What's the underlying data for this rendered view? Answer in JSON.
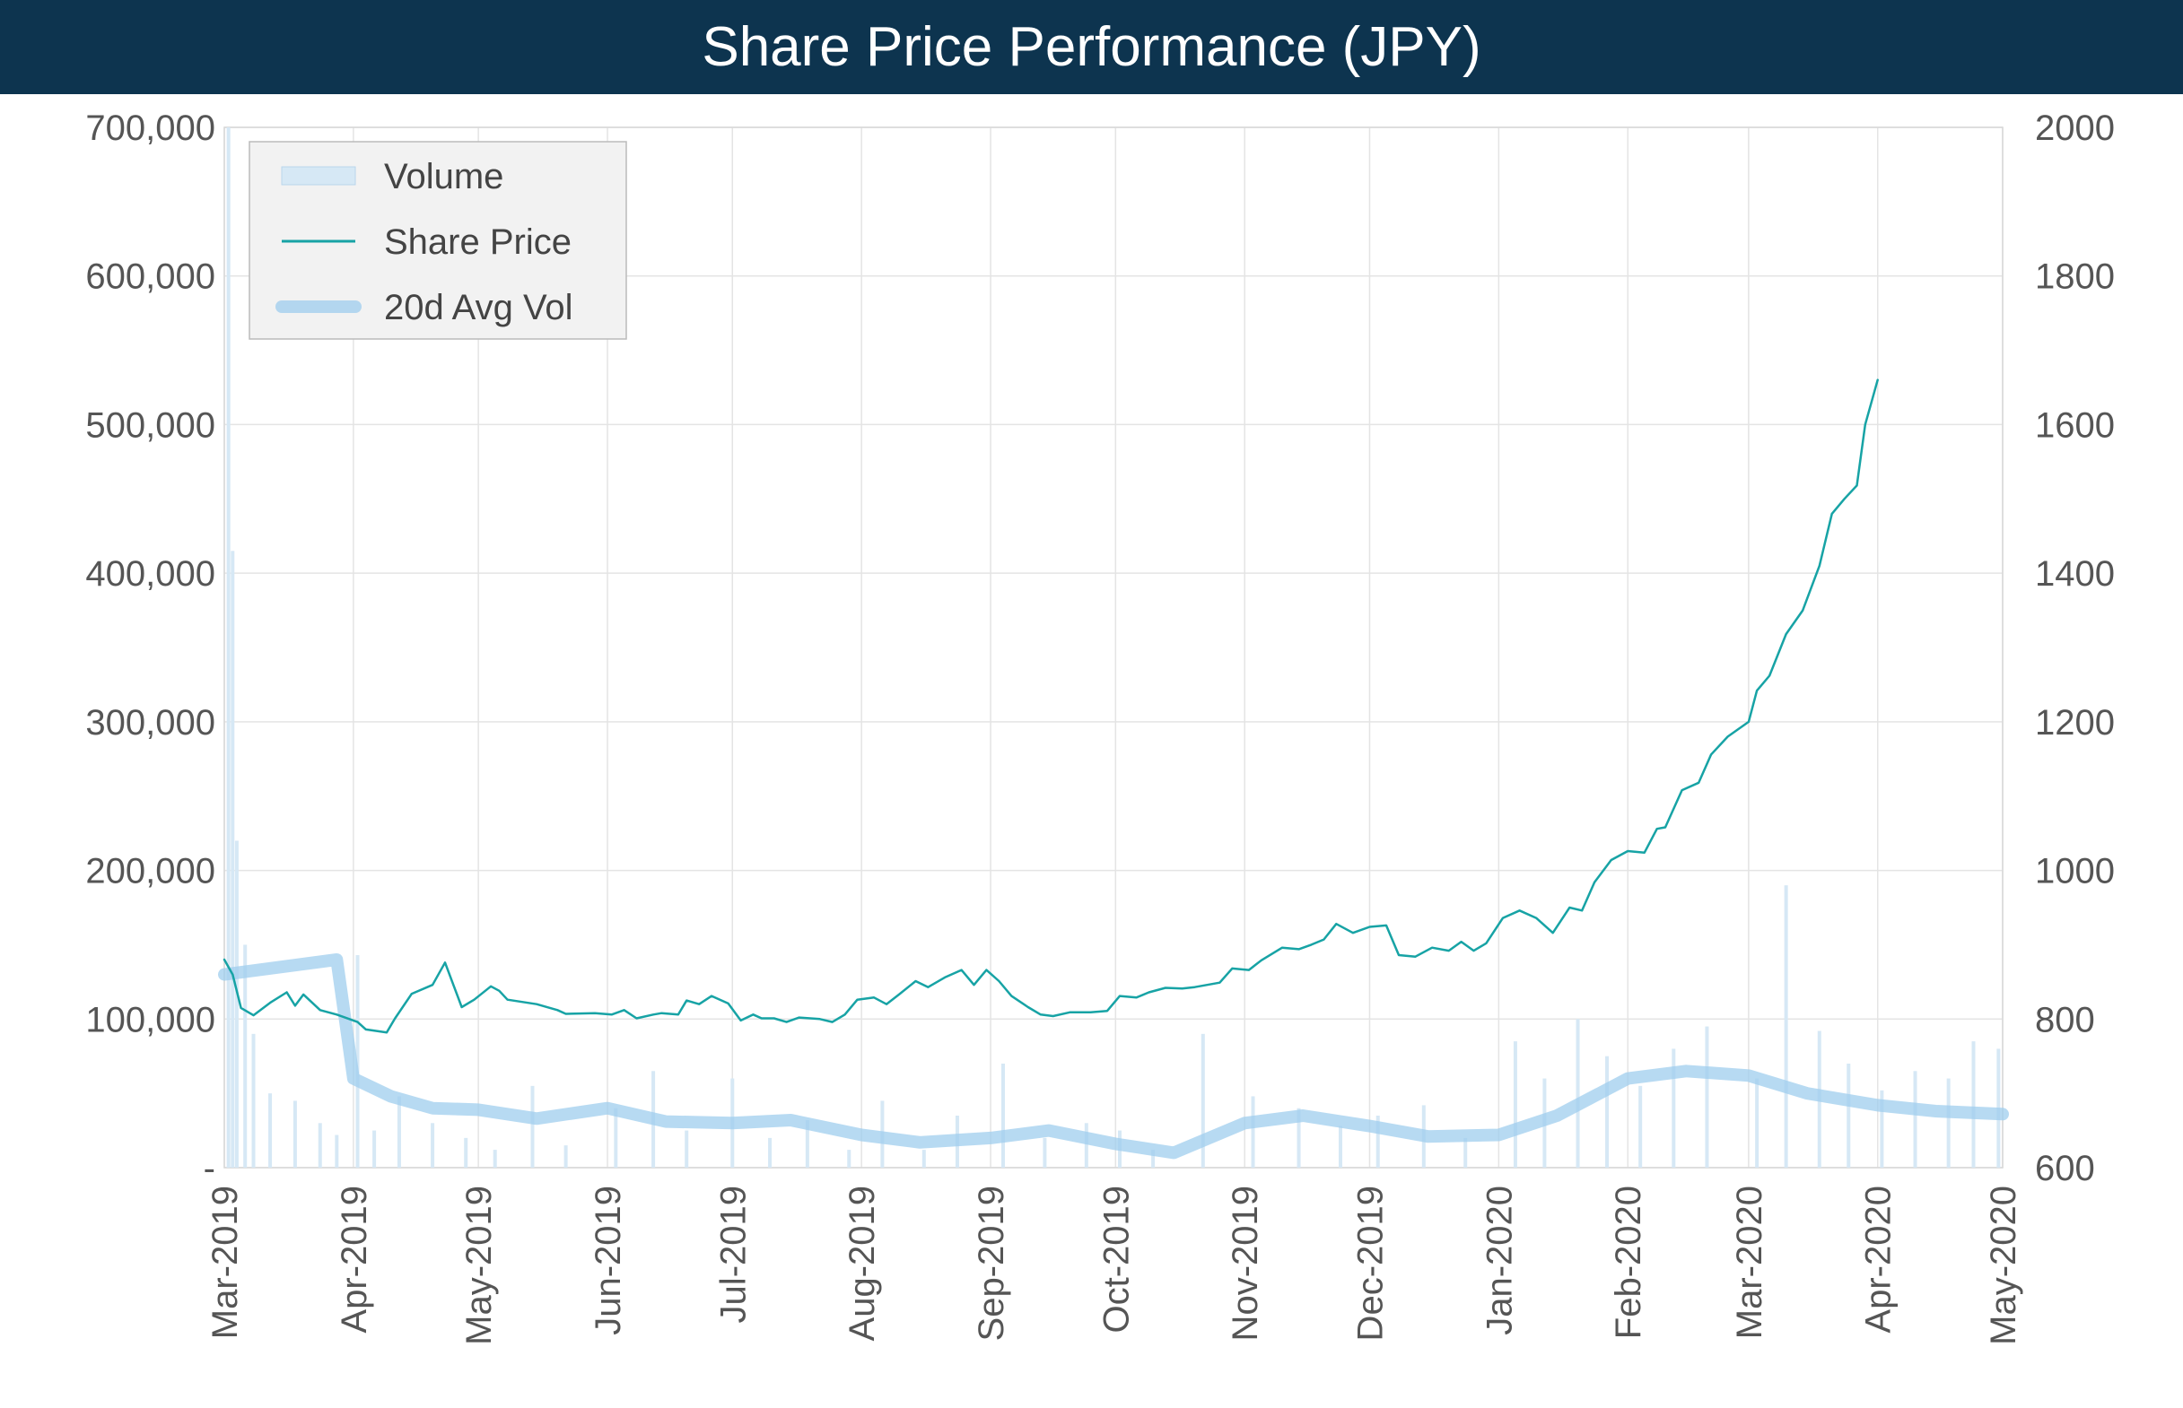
{
  "chart_data": {
    "type": "line",
    "title": "Share Price Performance (JPY)",
    "legend": {
      "placement": "top-left",
      "entries": [
        {
          "name": "Volume",
          "color": "#d6e8f5"
        },
        {
          "name": "Share Price",
          "color": "#17a3a5"
        },
        {
          "name": "20d Avg Vol",
          "color": "#9fcdee"
        }
      ]
    },
    "y_left": {
      "label": "",
      "range": [
        0,
        700000
      ],
      "ticks": [
        "-",
        "100,000",
        "200,000",
        "300,000",
        "400,000",
        "500,000",
        "600,000",
        "700,000"
      ],
      "tick_values": [
        0,
        100000,
        200000,
        300000,
        400000,
        500000,
        600000,
        700000
      ]
    },
    "y_right": {
      "label": "",
      "range": [
        600,
        2000
      ],
      "ticks": [
        "600",
        "800",
        "1000",
        "1200",
        "1400",
        "1600",
        "1800",
        "2000"
      ],
      "tick_values": [
        600,
        800,
        1000,
        1200,
        1400,
        1600,
        1800,
        2000
      ]
    },
    "x_axis": {
      "label": "",
      "range": [
        "2019-03-01",
        "2020-05-01"
      ],
      "ticks": [
        "Mar-2019",
        "Apr-2019",
        "May-2019",
        "Jun-2019",
        "Jul-2019",
        "Aug-2019",
        "Sep-2019",
        "Oct-2019",
        "Nov-2019",
        "Dec-2019",
        "Jan-2020",
        "Feb-2020",
        "Mar-2020",
        "Apr-2020",
        "May-2020"
      ],
      "tick_dates": [
        "2019-03-01",
        "2019-04-01",
        "2019-05-01",
        "2019-06-01",
        "2019-07-01",
        "2019-08-01",
        "2019-09-01",
        "2019-10-01",
        "2019-11-01",
        "2019-12-01",
        "2020-01-01",
        "2020-02-01",
        "2020-03-01",
        "2020-04-01",
        "2020-05-01"
      ]
    },
    "grid": true,
    "series": [
      {
        "name": "Share Price",
        "axis": "right",
        "type": "line",
        "color": "#17a3a5",
        "points": [
          [
            "2019-03-01",
            880
          ],
          [
            "2019-03-03",
            860
          ],
          [
            "2019-03-05",
            815
          ],
          [
            "2019-03-08",
            805
          ],
          [
            "2019-03-12",
            822
          ],
          [
            "2019-03-16",
            836
          ],
          [
            "2019-03-18",
            818
          ],
          [
            "2019-03-20",
            833
          ],
          [
            "2019-03-24",
            812
          ],
          [
            "2019-03-28",
            806
          ],
          [
            "2019-04-02",
            796
          ],
          [
            "2019-04-04",
            786
          ],
          [
            "2019-04-09",
            782
          ],
          [
            "2019-04-11",
            801
          ],
          [
            "2019-04-15",
            834
          ],
          [
            "2019-04-20",
            846
          ],
          [
            "2019-04-23",
            876
          ],
          [
            "2019-04-27",
            816
          ],
          [
            "2019-04-30",
            826
          ],
          [
            "2019-05-04",
            844
          ],
          [
            "2019-05-06",
            838
          ],
          [
            "2019-05-08",
            826
          ],
          [
            "2019-05-15",
            820
          ],
          [
            "2019-05-20",
            812
          ],
          [
            "2019-05-22",
            807
          ],
          [
            "2019-05-29",
            808
          ],
          [
            "2019-06-02",
            806
          ],
          [
            "2019-06-05",
            812
          ],
          [
            "2019-06-08",
            801
          ],
          [
            "2019-06-12",
            806
          ],
          [
            "2019-06-14",
            808
          ],
          [
            "2019-06-18",
            806
          ],
          [
            "2019-06-20",
            825
          ],
          [
            "2019-06-23",
            820
          ],
          [
            "2019-06-26",
            831
          ],
          [
            "2019-06-30",
            821
          ],
          [
            "2019-07-03",
            798
          ],
          [
            "2019-07-06",
            806
          ],
          [
            "2019-07-08",
            801
          ],
          [
            "2019-07-11",
            801
          ],
          [
            "2019-07-14",
            796
          ],
          [
            "2019-07-17",
            802
          ],
          [
            "2019-07-22",
            800
          ],
          [
            "2019-07-25",
            796
          ],
          [
            "2019-07-28",
            806
          ],
          [
            "2019-07-31",
            826
          ],
          [
            "2019-08-04",
            829
          ],
          [
            "2019-08-07",
            820
          ],
          [
            "2019-08-10",
            833
          ],
          [
            "2019-08-14",
            851
          ],
          [
            "2019-08-17",
            843
          ],
          [
            "2019-08-21",
            856
          ],
          [
            "2019-08-25",
            866
          ],
          [
            "2019-08-28",
            846
          ],
          [
            "2019-08-31",
            866
          ],
          [
            "2019-09-03",
            851
          ],
          [
            "2019-09-06",
            831
          ],
          [
            "2019-09-10",
            816
          ],
          [
            "2019-09-13",
            806
          ],
          [
            "2019-09-16",
            804
          ],
          [
            "2019-09-20",
            809
          ],
          [
            "2019-09-25",
            809
          ],
          [
            "2019-09-29",
            811
          ],
          [
            "2019-10-02",
            831
          ],
          [
            "2019-10-06",
            829
          ],
          [
            "2019-10-09",
            836
          ],
          [
            "2019-10-13",
            842
          ],
          [
            "2019-10-17",
            841
          ],
          [
            "2019-10-20",
            843
          ],
          [
            "2019-10-26",
            849
          ],
          [
            "2019-10-29",
            868
          ],
          [
            "2019-11-02",
            866
          ],
          [
            "2019-11-05",
            879
          ],
          [
            "2019-11-10",
            896
          ],
          [
            "2019-11-14",
            894
          ],
          [
            "2019-11-17",
            900
          ],
          [
            "2019-11-20",
            907
          ],
          [
            "2019-11-23",
            928
          ],
          [
            "2019-11-27",
            916
          ],
          [
            "2019-12-01",
            924
          ],
          [
            "2019-12-05",
            926
          ],
          [
            "2019-12-08",
            886
          ],
          [
            "2019-12-12",
            884
          ],
          [
            "2019-12-16",
            896
          ],
          [
            "2019-12-20",
            892
          ],
          [
            "2019-12-23",
            904
          ],
          [
            "2019-12-26",
            892
          ],
          [
            "2019-12-29",
            902
          ],
          [
            "2020-01-02",
            936
          ],
          [
            "2020-01-06",
            946
          ],
          [
            "2020-01-10",
            936
          ],
          [
            "2020-01-14",
            916
          ],
          [
            "2020-01-18",
            950
          ],
          [
            "2020-01-21",
            946
          ],
          [
            "2020-01-24",
            984
          ],
          [
            "2020-01-28",
            1014
          ],
          [
            "2020-02-01",
            1026
          ],
          [
            "2020-02-05",
            1024
          ],
          [
            "2020-02-08",
            1056
          ],
          [
            "2020-02-10",
            1058
          ],
          [
            "2020-02-14",
            1108
          ],
          [
            "2020-02-18",
            1118
          ],
          [
            "2020-02-21",
            1156
          ],
          [
            "2020-02-25",
            1180
          ],
          [
            "2020-03-01",
            1200
          ],
          [
            "2020-03-03",
            1242
          ],
          [
            "2020-03-06",
            1262
          ],
          [
            "2020-03-10",
            1318
          ],
          [
            "2020-03-14",
            1350
          ],
          [
            "2020-03-18",
            1410
          ],
          [
            "2020-03-21",
            1480
          ],
          [
            "2020-03-24",
            1500
          ],
          [
            "2020-03-27",
            1518
          ],
          [
            "2020-03-29",
            1600
          ],
          [
            "2020-04-01",
            1660
          ]
        ]
      },
      {
        "name": "20d Avg Vol",
        "axis": "left",
        "type": "line",
        "color": "#9fcdee",
        "points": [
          [
            "2019-03-01",
            130000
          ],
          [
            "2019-03-28",
            140000
          ],
          [
            "2019-04-01",
            60000
          ],
          [
            "2019-04-10",
            48000
          ],
          [
            "2019-04-20",
            40000
          ],
          [
            "2019-05-01",
            39000
          ],
          [
            "2019-05-15",
            33000
          ],
          [
            "2019-06-01",
            40000
          ],
          [
            "2019-06-15",
            31000
          ],
          [
            "2019-07-01",
            30000
          ],
          [
            "2019-07-15",
            32000
          ],
          [
            "2019-08-01",
            22000
          ],
          [
            "2019-08-15",
            17000
          ],
          [
            "2019-09-01",
            20000
          ],
          [
            "2019-09-15",
            25000
          ],
          [
            "2019-10-01",
            16000
          ],
          [
            "2019-10-15",
            10000
          ],
          [
            "2019-11-01",
            30000
          ],
          [
            "2019-11-15",
            35000
          ],
          [
            "2019-12-01",
            28000
          ],
          [
            "2019-12-15",
            21000
          ],
          [
            "2020-01-01",
            22000
          ],
          [
            "2020-01-15",
            35000
          ],
          [
            "2020-02-01",
            60000
          ],
          [
            "2020-02-15",
            65000
          ],
          [
            "2020-03-01",
            62000
          ],
          [
            "2020-03-15",
            50000
          ],
          [
            "2020-04-01",
            42000
          ],
          [
            "2020-04-15",
            38000
          ],
          [
            "2020-05-01",
            36000
          ]
        ]
      }
    ],
    "volume": {
      "name": "Volume",
      "axis": "left",
      "type": "bar",
      "color": "#d6e8f5",
      "points": [
        [
          "2019-03-02",
          700000
        ],
        [
          "2019-03-03",
          415000
        ],
        [
          "2019-03-04",
          220000
        ],
        [
          "2019-03-06",
          150000
        ],
        [
          "2019-03-08",
          90000
        ],
        [
          "2019-03-12",
          50000
        ],
        [
          "2019-03-18",
          45000
        ],
        [
          "2019-03-24",
          30000
        ],
        [
          "2019-03-28",
          22000
        ],
        [
          "2019-04-02",
          143000
        ],
        [
          "2019-04-06",
          25000
        ],
        [
          "2019-04-12",
          48000
        ],
        [
          "2019-04-20",
          30000
        ],
        [
          "2019-04-28",
          20000
        ],
        [
          "2019-05-05",
          12000
        ],
        [
          "2019-05-14",
          55000
        ],
        [
          "2019-05-22",
          15000
        ],
        [
          "2019-06-03",
          40000
        ],
        [
          "2019-06-12",
          65000
        ],
        [
          "2019-06-20",
          25000
        ],
        [
          "2019-07-01",
          60000
        ],
        [
          "2019-07-10",
          20000
        ],
        [
          "2019-07-19",
          32000
        ],
        [
          "2019-07-29",
          12000
        ],
        [
          "2019-08-06",
          45000
        ],
        [
          "2019-08-16",
          12000
        ],
        [
          "2019-08-24",
          35000
        ],
        [
          "2019-09-04",
          70000
        ],
        [
          "2019-09-14",
          20000
        ],
        [
          "2019-09-24",
          30000
        ],
        [
          "2019-10-02",
          25000
        ],
        [
          "2019-10-10",
          12000
        ],
        [
          "2019-10-22",
          90000
        ],
        [
          "2019-11-03",
          48000
        ],
        [
          "2019-11-14",
          40000
        ],
        [
          "2019-11-24",
          28000
        ],
        [
          "2019-12-03",
          35000
        ],
        [
          "2019-12-14",
          42000
        ],
        [
          "2019-12-24",
          20000
        ],
        [
          "2020-01-05",
          85000
        ],
        [
          "2020-01-12",
          60000
        ],
        [
          "2020-01-20",
          100000
        ],
        [
          "2020-01-27",
          75000
        ],
        [
          "2020-02-04",
          55000
        ],
        [
          "2020-02-12",
          80000
        ],
        [
          "2020-02-20",
          95000
        ],
        [
          "2020-03-03",
          60000
        ],
        [
          "2020-03-10",
          190000
        ],
        [
          "2020-03-18",
          92000
        ],
        [
          "2020-03-25",
          70000
        ],
        [
          "2020-04-02",
          52000
        ],
        [
          "2020-04-10",
          65000
        ],
        [
          "2020-04-18",
          60000
        ],
        [
          "2020-04-24",
          85000
        ],
        [
          "2020-04-30",
          80000
        ]
      ]
    }
  }
}
